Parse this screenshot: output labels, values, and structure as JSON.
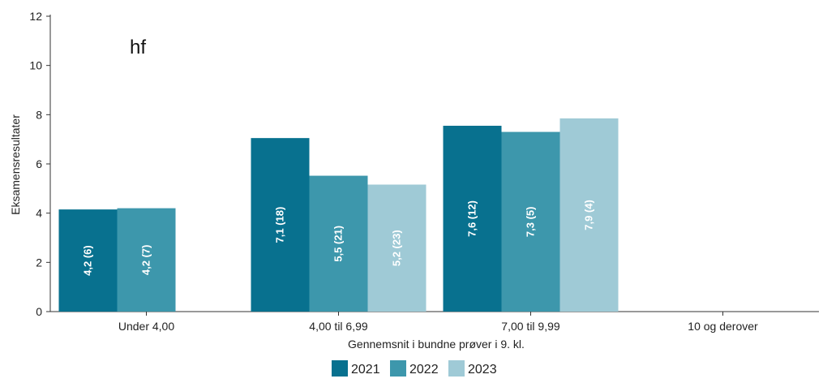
{
  "chart_data": {
    "type": "bar",
    "title": "hf",
    "xlabel": "Gennemsnit i bundne prøver i 9. kl.",
    "ylabel": "Eksamensresultater",
    "ylim": [
      0,
      12
    ],
    "yticks": [
      0,
      2,
      4,
      6,
      8,
      10,
      12
    ],
    "grid": false,
    "legend_position": "bottom",
    "categories": [
      "Under 4,00",
      "4,00 til 6,99",
      "7,00 til 9,99",
      "10 og derover"
    ],
    "series": [
      {
        "name": "2021",
        "color": "#08718f",
        "values": [
          4.15,
          7.05,
          7.55,
          null
        ],
        "labels": [
          "4,2 (6)",
          "7,1 (18)",
          "7,6 (12)",
          ""
        ]
      },
      {
        "name": "2022",
        "color": "#3d97ac",
        "values": [
          4.2,
          5.52,
          7.3,
          null
        ],
        "labels": [
          "4,2 (7)",
          "5,5 (21)",
          "7,3 (5)",
          ""
        ]
      },
      {
        "name": "2023",
        "color": "#9fcad6",
        "values": [
          null,
          5.16,
          7.85,
          null
        ],
        "labels": [
          "",
          "5,2 (23)",
          "7,9 (4)",
          ""
        ]
      }
    ]
  }
}
